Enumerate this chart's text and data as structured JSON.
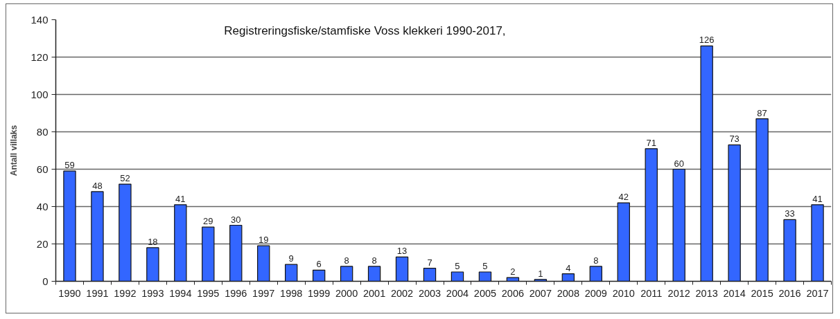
{
  "chart_data": {
    "type": "bar",
    "title": "Registreringsfiske/stamfiske  Voss klekkeri 1990-2017,",
    "ylabel": "Antall villaks",
    "categories": [
      "1990",
      "1991",
      "1992",
      "1993",
      "1994",
      "1995",
      "1996",
      "1997",
      "1998",
      "1999",
      "2000",
      "2001",
      "2002",
      "2003",
      "2004",
      "2005",
      "2006",
      "2007",
      "2008",
      "2009",
      "2010",
      "2011",
      "2012",
      "2013",
      "2014",
      "2015",
      "2016",
      "2017"
    ],
    "values": [
      59,
      48,
      52,
      18,
      41,
      29,
      30,
      19,
      9,
      6,
      8,
      8,
      13,
      7,
      5,
      5,
      2,
      1,
      4,
      8,
      42,
      71,
      60,
      126,
      73,
      87,
      33,
      41
    ],
    "color": "#3366ff",
    "ylim": [
      0,
      140
    ],
    "yticks": [
      0,
      20,
      40,
      60,
      80,
      100,
      120,
      140
    ],
    "grid": "y",
    "data_labels": true
  }
}
